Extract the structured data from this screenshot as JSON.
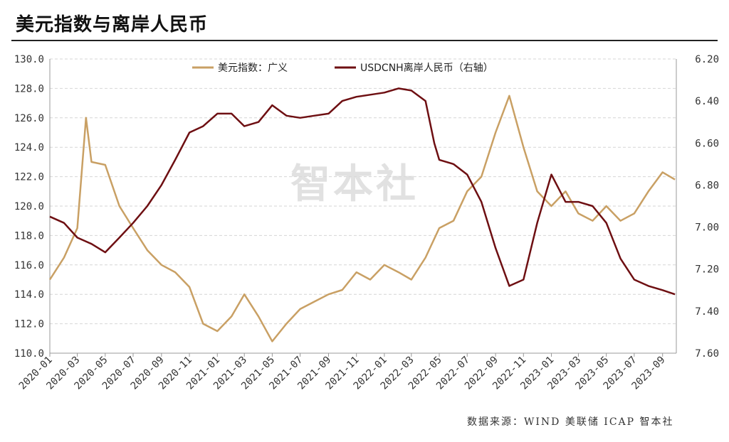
{
  "title": "美元指数与离岸人民币",
  "source": "数据来源：WIND 美联储 ICAP 智本社",
  "watermark": "智本社",
  "colors": {
    "dollar_index": "#c9a064",
    "usdcnh": "#6e0f12",
    "grid": "#d6d6d6"
  },
  "chart_data": {
    "type": "line",
    "title": "美元指数与离岸人民币",
    "legend_position": "top-center",
    "grid": true,
    "x_ticks": [
      "2020-01",
      "2020-03",
      "2020-05",
      "2020-07",
      "2020-09",
      "2020-11",
      "2021-01",
      "2021-03",
      "2021-05",
      "2021-07",
      "2021-09",
      "2021-11",
      "2022-01",
      "2022-03",
      "2022-05",
      "2022-07",
      "2022-09",
      "2022-11",
      "2023-01",
      "2023-03",
      "2023-05",
      "2023-07",
      "2023-09"
    ],
    "y_left": {
      "min": 110.0,
      "max": 130.0,
      "ticks": [
        "130.0",
        "128.0",
        "126.0",
        "124.0",
        "122.0",
        "120.0",
        "118.0",
        "116.0",
        "114.0",
        "112.0",
        "110.0"
      ]
    },
    "y_right": {
      "min": 6.2,
      "max": 7.6,
      "inverted": true,
      "ticks": [
        "6.20",
        "6.40",
        "6.60",
        "6.80",
        "7.00",
        "7.20",
        "7.40",
        "7.60"
      ]
    },
    "series": [
      {
        "name": "美元指数：广义",
        "axis": "left",
        "x": [
          "2020-01",
          "2020-02",
          "2020-03",
          "2020-03-20",
          "2020-04",
          "2020-05",
          "2020-06",
          "2020-07",
          "2020-08",
          "2020-09",
          "2020-10",
          "2020-11",
          "2020-12",
          "2021-01",
          "2021-02",
          "2021-03",
          "2021-04",
          "2021-05",
          "2021-06",
          "2021-07",
          "2021-08",
          "2021-09",
          "2021-10",
          "2021-11",
          "2021-12",
          "2022-01",
          "2022-02",
          "2022-03",
          "2022-04",
          "2022-05",
          "2022-06",
          "2022-07",
          "2022-08",
          "2022-09",
          "2022-10",
          "2022-11",
          "2022-12",
          "2023-01",
          "2023-02",
          "2023-03",
          "2023-04",
          "2023-05",
          "2023-06",
          "2023-07",
          "2023-08",
          "2023-09",
          "2023-09-28"
        ],
        "values": [
          115.0,
          116.5,
          118.5,
          126.0,
          123.0,
          122.8,
          120.0,
          118.5,
          117.0,
          116.0,
          115.5,
          114.5,
          112.0,
          111.5,
          112.5,
          114.0,
          112.5,
          110.8,
          112.0,
          113.0,
          113.5,
          114.0,
          114.3,
          115.5,
          115.0,
          116.0,
          115.5,
          115.0,
          116.5,
          118.5,
          119.0,
          121.0,
          122.0,
          125.0,
          127.5,
          124.0,
          121.0,
          120.0,
          121.0,
          119.5,
          119.0,
          120.0,
          119.0,
          119.5,
          121.0,
          122.3,
          121.8
        ]
      },
      {
        "name": "USDCNH离岸人民币（右轴）",
        "axis": "right",
        "x": [
          "2020-01",
          "2020-02",
          "2020-03",
          "2020-04",
          "2020-05",
          "2020-06",
          "2020-07",
          "2020-08",
          "2020-09",
          "2020-10",
          "2020-11",
          "2020-12",
          "2021-01",
          "2021-02",
          "2021-03",
          "2021-04",
          "2021-05",
          "2021-06",
          "2021-07",
          "2021-08",
          "2021-09",
          "2021-10",
          "2021-11",
          "2021-12",
          "2022-01",
          "2022-02",
          "2022-03",
          "2022-04",
          "2022-04-20",
          "2022-05",
          "2022-06",
          "2022-07",
          "2022-08",
          "2022-09",
          "2022-10",
          "2022-11",
          "2022-12",
          "2023-01",
          "2023-02",
          "2023-03",
          "2023-04",
          "2023-05",
          "2023-06",
          "2023-07",
          "2023-08",
          "2023-09",
          "2023-09-28"
        ],
        "values": [
          6.95,
          6.98,
          7.05,
          7.08,
          7.12,
          7.05,
          6.98,
          6.9,
          6.8,
          6.68,
          6.55,
          6.52,
          6.46,
          6.46,
          6.52,
          6.5,
          6.42,
          6.47,
          6.48,
          6.47,
          6.46,
          6.4,
          6.38,
          6.37,
          6.36,
          6.34,
          6.35,
          6.4,
          6.6,
          6.68,
          6.7,
          6.75,
          6.88,
          7.1,
          7.28,
          7.25,
          6.98,
          6.75,
          6.88,
          6.88,
          6.9,
          6.98,
          7.15,
          7.25,
          7.28,
          7.3,
          7.32
        ]
      }
    ]
  }
}
